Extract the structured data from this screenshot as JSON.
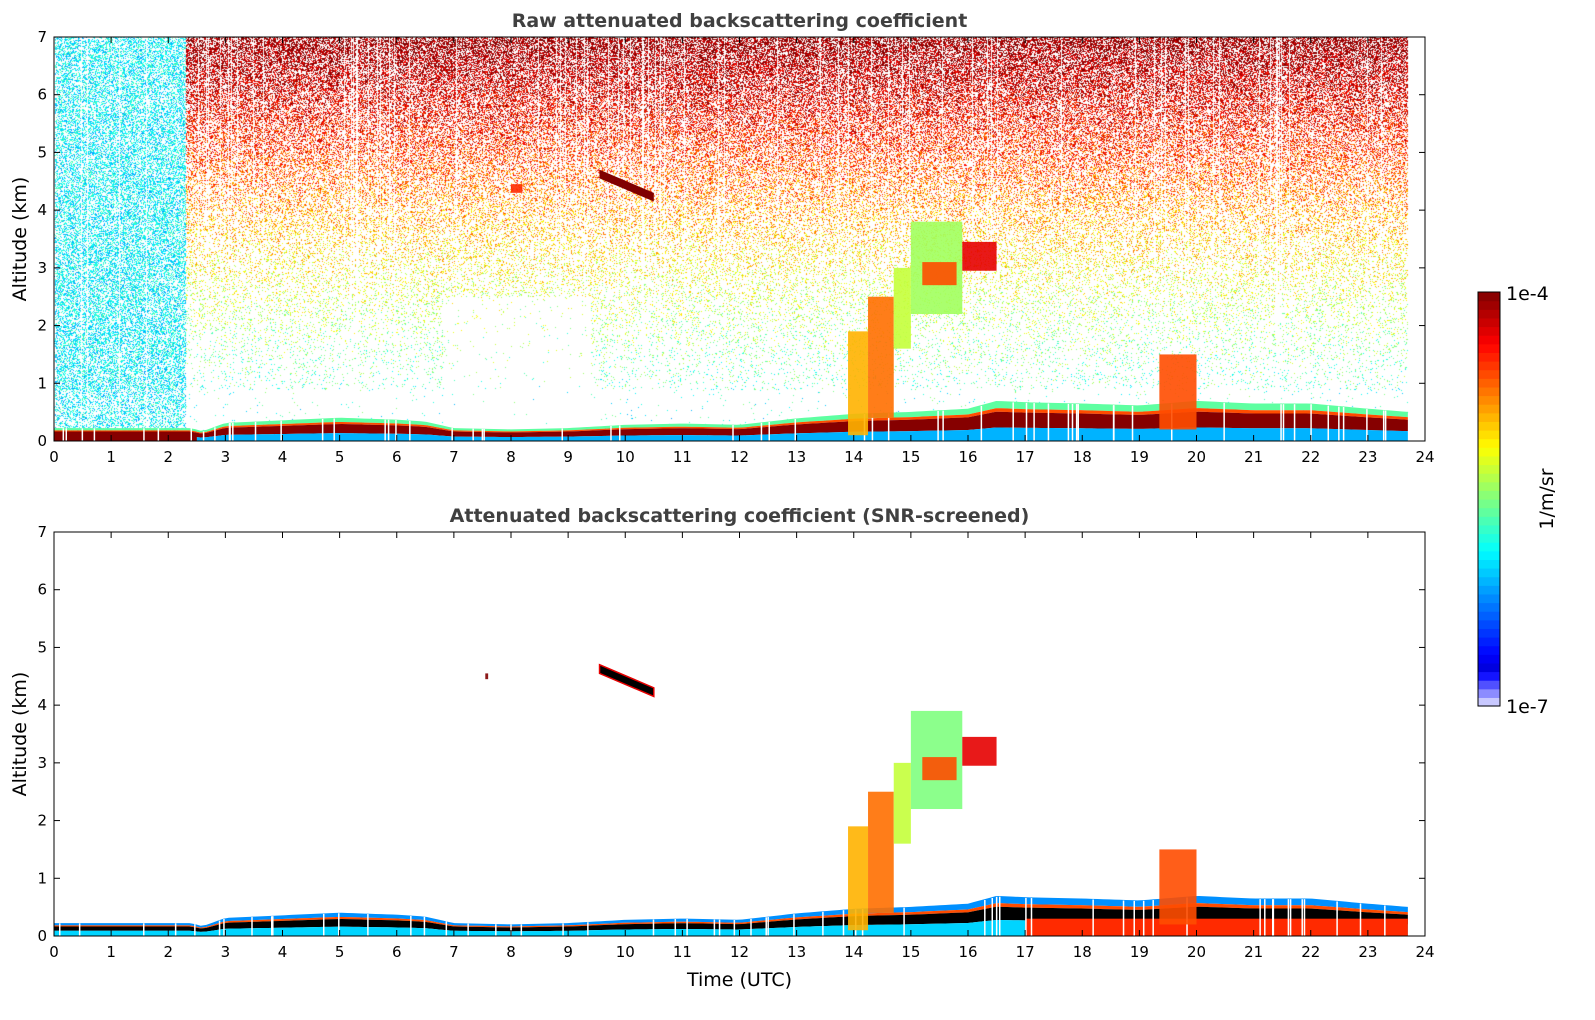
{
  "colorbar": {
    "label": "1/m/sr",
    "max_label": "1e-4",
    "min_label": "1e-7",
    "log_range": [
      -7,
      -4
    ]
  },
  "chart_data": [
    {
      "type": "heatmap",
      "title": "Raw attenuated backscattering coefficient",
      "xlabel": "",
      "ylabel": "Altitude (km)",
      "xlim": [
        0,
        24
      ],
      "ylim": [
        0,
        7
      ],
      "xticks": [
        "0",
        "1",
        "2",
        "3",
        "4",
        "5",
        "6",
        "7",
        "8",
        "9",
        "10",
        "11",
        "12",
        "13",
        "14",
        "15",
        "16",
        "17",
        "18",
        "19",
        "20",
        "21",
        "22",
        "23",
        "24"
      ],
      "yticks": [
        "0",
        "1",
        "2",
        "3",
        "4",
        "5",
        "6",
        "7"
      ],
      "data_end_hour": 23.7,
      "noise": true,
      "boundary_layer_top_km": {
        "t": [
          0,
          1,
          2,
          2.4,
          2.6,
          3,
          4,
          5,
          6,
          6.5,
          7,
          8,
          9,
          10,
          11,
          12,
          13,
          14,
          15,
          16,
          16.5,
          17,
          18,
          19,
          20,
          21,
          22,
          23,
          23.7
        ],
        "h": [
          0.2,
          0.2,
          0.2,
          0.2,
          0.15,
          0.28,
          0.32,
          0.36,
          0.33,
          0.3,
          0.2,
          0.18,
          0.2,
          0.25,
          0.27,
          0.25,
          0.35,
          0.42,
          0.45,
          0.5,
          0.62,
          0.6,
          0.58,
          0.55,
          0.62,
          0.58,
          0.58,
          0.5,
          0.45
        ]
      },
      "features": [
        {
          "name": "cirrus-layer",
          "t0": 9.55,
          "t1": 10.5,
          "z0": 4.55,
          "z1": 4.7,
          "z_end0": 4.15,
          "z_end1": 4.3,
          "log_value": -4.0
        },
        {
          "name": "small-cloud",
          "t0": 8.0,
          "t1": 8.2,
          "z0": 4.3,
          "z1": 4.45,
          "log_value": -4.5
        },
        {
          "name": "rising-plume-a",
          "t0": 13.9,
          "t1": 14.25,
          "z0": 0.1,
          "z1": 1.9,
          "log_value": -4.9
        },
        {
          "name": "rising-plume-b",
          "t0": 14.25,
          "t1": 14.7,
          "z0": 0.4,
          "z1": 2.5,
          "log_value": -4.7
        },
        {
          "name": "rising-plume-c",
          "t0": 14.7,
          "t1": 15.0,
          "z0": 1.6,
          "z1": 3.0,
          "log_value": -5.3
        },
        {
          "name": "mid-cloud",
          "t0": 15.0,
          "t1": 15.9,
          "z0": 2.2,
          "z1": 3.8,
          "log_value": -5.4
        },
        {
          "name": "mid-cloud-core",
          "t0": 15.2,
          "t1": 15.8,
          "z0": 2.7,
          "z1": 3.1,
          "log_value": -4.6
        },
        {
          "name": "mid-cloud-tail",
          "t0": 15.9,
          "t1": 16.5,
          "z0": 2.95,
          "z1": 3.45,
          "log_value": -4.3
        },
        {
          "name": "afternoon-plume",
          "t0": 19.35,
          "t1": 20.0,
          "z0": 0.2,
          "z1": 1.5,
          "log_value": -4.6
        }
      ]
    },
    {
      "type": "heatmap",
      "title": "Attenuated backscattering coefficient (SNR-screened)",
      "xlabel": "Time (UTC)",
      "ylabel": "Altitude (km)",
      "xlim": [
        0,
        24
      ],
      "ylim": [
        0,
        7
      ],
      "xticks": [
        "0",
        "1",
        "2",
        "3",
        "4",
        "5",
        "6",
        "7",
        "8",
        "9",
        "10",
        "11",
        "12",
        "13",
        "14",
        "15",
        "16",
        "17",
        "18",
        "19",
        "20",
        "21",
        "22",
        "23",
        "24"
      ],
      "yticks": [
        "0",
        "1",
        "2",
        "3",
        "4",
        "5",
        "6",
        "7"
      ],
      "data_end_hour": 23.7,
      "noise": false,
      "boundary_layer_top_km": {
        "t": [
          0,
          1,
          2,
          2.4,
          2.6,
          3,
          4,
          5,
          6,
          6.5,
          7,
          8,
          9,
          10,
          11,
          12,
          13,
          14,
          15,
          16,
          16.5,
          17,
          18,
          19,
          20,
          21,
          22,
          23,
          23.7
        ],
        "h": [
          0.2,
          0.2,
          0.2,
          0.2,
          0.15,
          0.28,
          0.32,
          0.36,
          0.33,
          0.3,
          0.2,
          0.18,
          0.2,
          0.25,
          0.27,
          0.25,
          0.35,
          0.42,
          0.45,
          0.5,
          0.62,
          0.6,
          0.58,
          0.55,
          0.62,
          0.58,
          0.58,
          0.5,
          0.45
        ]
      },
      "features": [
        {
          "name": "cirrus-layer",
          "t0": 9.55,
          "t1": 10.5,
          "z0": 4.55,
          "z1": 4.7,
          "z_end0": 4.15,
          "z_end1": 4.3,
          "log_value": -3.9
        },
        {
          "name": "small-cloud",
          "t0": 7.55,
          "t1": 7.6,
          "z0": 4.45,
          "z1": 4.55,
          "log_value": -3.9
        },
        {
          "name": "rising-plume-a",
          "t0": 13.9,
          "t1": 14.25,
          "z0": 0.1,
          "z1": 1.9,
          "log_value": -4.9
        },
        {
          "name": "rising-plume-b",
          "t0": 14.25,
          "t1": 14.7,
          "z0": 0.4,
          "z1": 2.5,
          "log_value": -4.7
        },
        {
          "name": "rising-plume-c",
          "t0": 14.7,
          "t1": 15.0,
          "z0": 1.6,
          "z1": 3.0,
          "log_value": -5.3
        },
        {
          "name": "mid-cloud",
          "t0": 15.0,
          "t1": 15.9,
          "z0": 2.2,
          "z1": 3.9,
          "log_value": -5.5
        },
        {
          "name": "mid-cloud-core",
          "t0": 15.2,
          "t1": 15.8,
          "z0": 2.7,
          "z1": 3.1,
          "log_value": -4.6
        },
        {
          "name": "mid-cloud-tail",
          "t0": 15.9,
          "t1": 16.5,
          "z0": 2.95,
          "z1": 3.45,
          "log_value": -4.3
        },
        {
          "name": "afternoon-plume",
          "t0": 19.35,
          "t1": 20.0,
          "z0": 0.2,
          "z1": 1.5,
          "log_value": -4.6
        }
      ]
    }
  ]
}
